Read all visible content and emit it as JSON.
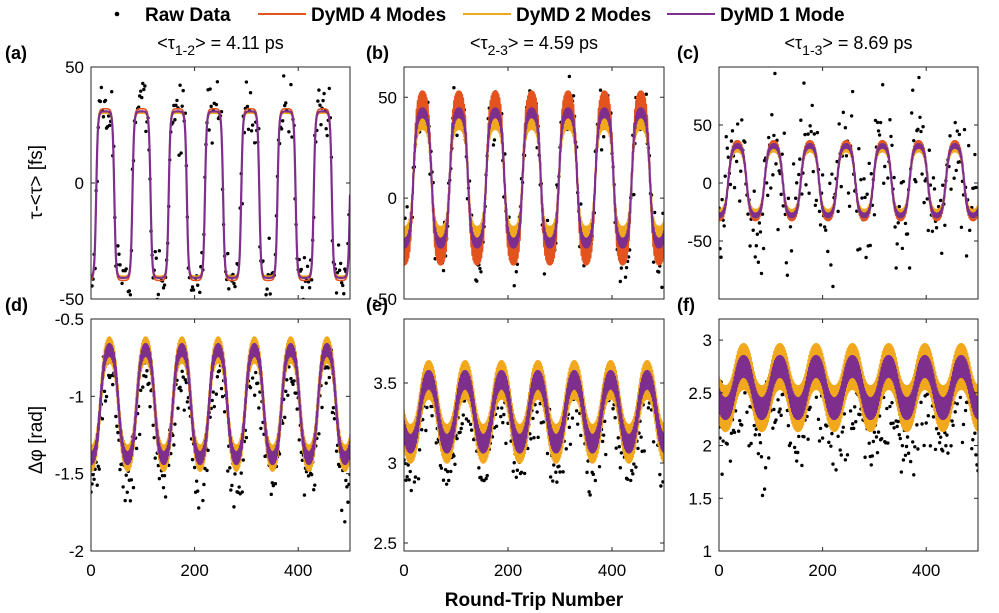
{
  "legend": {
    "items": [
      {
        "label": "Raw Data",
        "color": "#000000",
        "style": "dot"
      },
      {
        "label": "DyMD 4 Modes",
        "color": "#E2531E",
        "style": "line"
      },
      {
        "label": "DyMD 2 Modes",
        "color": "#F2A81D",
        "style": "line"
      },
      {
        "label": "DyMD 1 Mode",
        "color": "#7E2F8E",
        "style": "line"
      }
    ]
  },
  "figure": {
    "xlabel": "Round-Trip Number",
    "ylabel_top": "τ-<τ> [fs]",
    "ylabel_bottom": "Δφ [rad]"
  },
  "chart_data": [
    {
      "id": "a",
      "type": "line",
      "panel_label": "(a)",
      "title_pre": "<τ",
      "title_sub": "1-2",
      "title_post": "> = 4.11 ps",
      "xlim": [
        0,
        500
      ],
      "ylim": [
        -50,
        50
      ],
      "xticks": [
        0,
        200,
        400
      ],
      "yticks": [
        -50,
        0,
        50
      ],
      "signal": {
        "center": -5,
        "amp": 37,
        "period": 70,
        "phase": 10,
        "sharp": 3.5
      },
      "series_scale": {
        "DyMD 4 Modes": 1.0,
        "DyMD 2 Modes": 0.95,
        "DyMD 1 Mode": 0.97
      },
      "raw_noise": 7,
      "hf_amp": 0
    },
    {
      "id": "b",
      "type": "line",
      "panel_label": "(b)",
      "title_pre": "<τ",
      "title_sub": "2-3",
      "title_post": "> = 4.59 ps",
      "xlim": [
        0,
        500
      ],
      "ylim": [
        -50,
        65
      ],
      "xticks": [
        0,
        200,
        400
      ],
      "yticks": [
        -50,
        0,
        50
      ],
      "signal": {
        "center": 10,
        "amp": 34,
        "period": 70,
        "phase": 18,
        "sharp": 1.8
      },
      "series_scale": {
        "DyMD 4 Modes": 1.15,
        "DyMD 2 Modes": 0.85,
        "DyMD 1 Mode": 0.95
      },
      "raw_noise": 8,
      "hf_amp": 4
    },
    {
      "id": "c",
      "type": "line",
      "panel_label": "(c)",
      "title_pre": "<τ",
      "title_sub": "1-3",
      "title_post": "> = 8.69 ps",
      "xlim": [
        0,
        500
      ],
      "ylim": [
        -100,
        100
      ],
      "xticks": [
        0,
        200,
        400
      ],
      "yticks": [
        -50,
        0,
        50
      ],
      "signal": {
        "center": 2,
        "amp": 30,
        "period": 70,
        "phase": 18,
        "sharp": 1.6
      },
      "series_scale": {
        "DyMD 4 Modes": 1.05,
        "DyMD 2 Modes": 0.95,
        "DyMD 1 Mode": 1.0
      },
      "raw_noise": 28,
      "hf_amp": 3
    },
    {
      "id": "d",
      "type": "line",
      "panel_label": "(d)",
      "title_pre": "",
      "title_sub": "",
      "title_post": "",
      "xlim": [
        0,
        500
      ],
      "ylim": [
        -2,
        -0.5
      ],
      "xticks": [
        0,
        200,
        400
      ],
      "yticks": [
        -2,
        -1.5,
        -1,
        -0.5
      ],
      "signal": {
        "center": -1.05,
        "amp": 0.35,
        "period": 70,
        "phase": 18,
        "sharp": 1.2
      },
      "series_scale": {
        "DyMD 4 Modes": 1.0,
        "DyMD 2 Modes": 1.0,
        "DyMD 1 Mode": 1.0
      },
      "raw_noise": 0.1,
      "raw_offset": -0.17,
      "hf_amp": 0.07
    },
    {
      "id": "e",
      "type": "line",
      "panel_label": "(e)",
      "title_pre": "",
      "title_sub": "",
      "title_post": "",
      "xlim": [
        0,
        500
      ],
      "ylim": [
        2.45,
        3.9
      ],
      "xticks": [
        0,
        200,
        400
      ],
      "yticks": [
        2.5,
        3,
        3.5
      ],
      "signal": {
        "center": 3.32,
        "amp": 0.2,
        "period": 70,
        "phase": 30,
        "sharp": 1.0
      },
      "series_scale": {
        "DyMD 4 Modes": 1.0,
        "DyMD 2 Modes": 1.0,
        "DyMD 1 Mode": 1.0
      },
      "raw_noise": 0.1,
      "raw_offset": -0.15,
      "hf_amp": 0.1
    },
    {
      "id": "f",
      "type": "line",
      "panel_label": "(f)",
      "title_pre": "",
      "title_sub": "",
      "title_post": "",
      "xlim": [
        0,
        500
      ],
      "ylim": [
        1,
        3.2
      ],
      "xticks": [
        0,
        200,
        400
      ],
      "yticks": [
        1,
        1.5,
        2,
        2.5,
        3
      ],
      "signal": {
        "center": 2.55,
        "amp": 0.2,
        "period": 70,
        "phase": 30,
        "sharp": 1.0
      },
      "series_scale": {
        "DyMD 4 Modes": 1.0,
        "DyMD 2 Modes": 1.0,
        "DyMD 1 Mode": 1.0
      },
      "raw_noise": 0.22,
      "raw_offset": -0.3,
      "hf_amp": 0.18
    }
  ]
}
